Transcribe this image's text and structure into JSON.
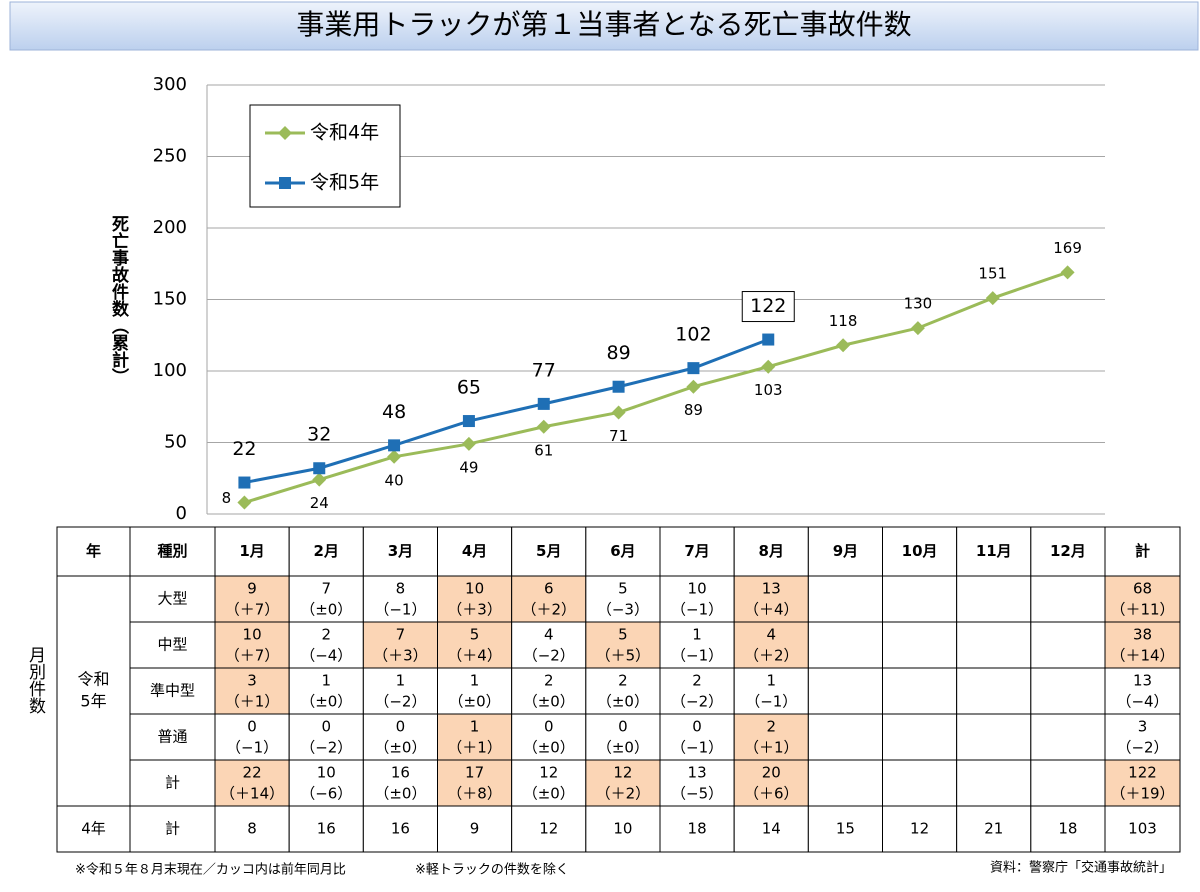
{
  "chart_data": {
    "type": "line",
    "title": "事業用トラックが第１当事者となる死亡事故件数",
    "y_label": "死亡事故件数（累計）",
    "categories": [
      null,
      null,
      null,
      null,
      null,
      null,
      null,
      null,
      null,
      null,
      null,
      null
    ],
    "series": [
      {
        "name": "令和4年",
        "color": "#9bbb59",
        "marker": "diamond",
        "values": [
          8,
          24,
          40,
          49,
          61,
          71,
          89,
          103,
          118,
          130,
          151,
          169
        ]
      },
      {
        "name": "令和5年",
        "color": "#1f6fb5",
        "marker": "square",
        "values": [
          22,
          32,
          48,
          65,
          77,
          89,
          102,
          122,
          null,
          null,
          null,
          null
        ]
      }
    ],
    "ylim": [
      0,
      300
    ],
    "yticks": [
      0,
      50,
      100,
      150,
      200,
      250,
      300
    ],
    "grid": true,
    "legend": "upper left"
  },
  "table": {
    "side_label": "月別件数",
    "header": [
      "年",
      "種別",
      "1月",
      "2月",
      "3月",
      "4月",
      "5月",
      "6月",
      "7月",
      "8月",
      "9月",
      "10月",
      "11月",
      "12月",
      "計"
    ],
    "group_label": [
      "令和",
      "5年"
    ],
    "rows": [
      {
        "type": "大型",
        "cells": [
          {
            "value": 9,
            "diff": "（＋7）"
          },
          {
            "value": 7,
            "diff": "（±0）"
          },
          {
            "value": 8,
            "diff": "（−1）"
          },
          {
            "value": 10,
            "diff": "（＋3）"
          },
          {
            "value": 6,
            "diff": "（＋2）"
          },
          {
            "value": 5,
            "diff": "（−3）"
          },
          {
            "value": 10,
            "diff": "（−1）"
          },
          {
            "value": 13,
            "diff": "（＋4）"
          },
          null,
          null,
          null,
          null
        ],
        "total": {
          "value": 68,
          "diff": "（＋11）"
        }
      },
      {
        "type": "中型",
        "cells": [
          {
            "value": 10,
            "diff": "（＋7）"
          },
          {
            "value": 2,
            "diff": "（−4）"
          },
          {
            "value": 7,
            "diff": "（＋3）"
          },
          {
            "value": 5,
            "diff": "（＋4）"
          },
          {
            "value": 4,
            "diff": "（−2）"
          },
          {
            "value": 5,
            "diff": "（＋5）"
          },
          {
            "value": 1,
            "diff": "（−1）"
          },
          {
            "value": 4,
            "diff": "（＋2）"
          },
          null,
          null,
          null,
          null
        ],
        "total": {
          "value": 38,
          "diff": "（＋14）"
        }
      },
      {
        "type": "準中型",
        "cells": [
          {
            "value": 3,
            "diff": "（＋1）"
          },
          {
            "value": 1,
            "diff": "（±0）"
          },
          {
            "value": 1,
            "diff": "（−2）"
          },
          {
            "value": 1,
            "diff": "（±0）"
          },
          {
            "value": 2,
            "diff": "（±0）"
          },
          {
            "value": 2,
            "diff": "（±0）"
          },
          {
            "value": 2,
            "diff": "（−2）"
          },
          {
            "value": 1,
            "diff": "（−1）"
          },
          null,
          null,
          null,
          null
        ],
        "total": {
          "value": 13,
          "diff": "（−4）"
        }
      },
      {
        "type": "普通",
        "cells": [
          {
            "value": 0,
            "diff": "（−1）"
          },
          {
            "value": 0,
            "diff": "（−2）"
          },
          {
            "value": 0,
            "diff": "（±0）"
          },
          {
            "value": 1,
            "diff": "（＋1）"
          },
          {
            "value": 0,
            "diff": "（±0）"
          },
          {
            "value": 0,
            "diff": "（±0）"
          },
          {
            "value": 0,
            "diff": "（−1）"
          },
          {
            "value": 2,
            "diff": "（＋1）"
          },
          null,
          null,
          null,
          null
        ],
        "total": {
          "value": 3,
          "diff": "（−2）"
        }
      },
      {
        "type": "計",
        "cells": [
          {
            "value": 22,
            "diff": "（＋14）"
          },
          {
            "value": 10,
            "diff": "（−6）"
          },
          {
            "value": 16,
            "diff": "（±0）"
          },
          {
            "value": 17,
            "diff": "（＋8）"
          },
          {
            "value": 12,
            "diff": "（±0）"
          },
          {
            "value": 12,
            "diff": "（＋2）"
          },
          {
            "value": 13,
            "diff": "（−5）"
          },
          {
            "value": 20,
            "diff": "（＋6）"
          },
          null,
          null,
          null,
          null
        ],
        "total": {
          "value": 122,
          "diff": "（＋19）"
        }
      }
    ],
    "prev_row": {
      "year": "4年",
      "type": "計",
      "cells": [
        8,
        16,
        16,
        9,
        12,
        10,
        18,
        14,
        15,
        12,
        21,
        18
      ],
      "total": 103
    }
  },
  "footnotes": {
    "note1": "※令和５年８月末現在／カッコ内は前年同月比",
    "note2": "※軽トラックの件数を除く",
    "source": "資料：警察庁「交通事故統計」"
  }
}
